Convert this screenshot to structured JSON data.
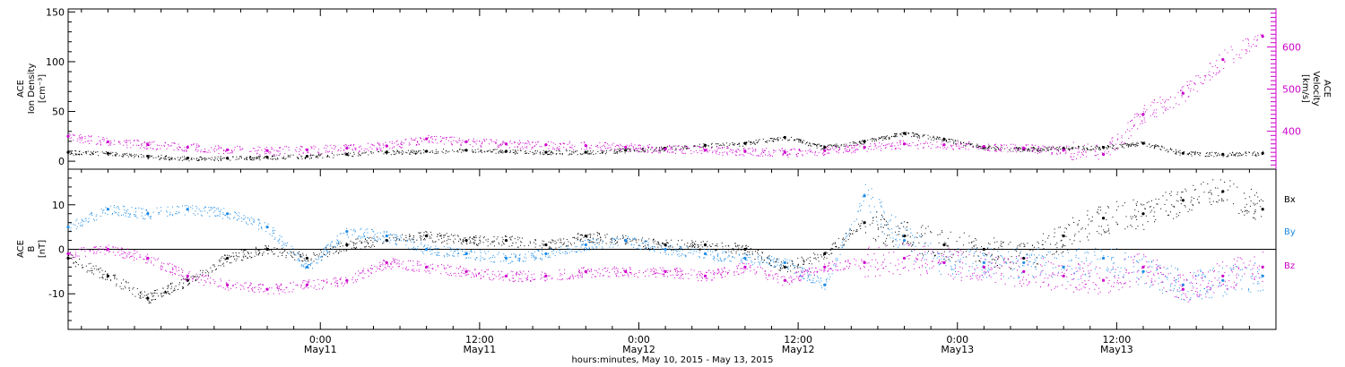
{
  "chart_data": [
    {
      "type": "scatter",
      "panel": "top",
      "ylabel_lines": [
        "ACE",
        "Ion Density",
        "[cm⁻³]"
      ],
      "ylabel_right_lines": [
        "ACE",
        "Velocity",
        "[km/s]"
      ],
      "ylim": [
        -8,
        153
      ],
      "yticks": [
        0,
        50,
        100,
        150
      ],
      "ylim_right": [
        310,
        690
      ],
      "yticks_right": [
        400,
        500,
        600
      ],
      "series": [
        {
          "color": "#000000",
          "axis": "left",
          "x": [
            0,
            3,
            6,
            9,
            12,
            15,
            18,
            21,
            24,
            27,
            30,
            33,
            36,
            39,
            42,
            45,
            48,
            51,
            54,
            57,
            60,
            63,
            66,
            69,
            72,
            75,
            78,
            81,
            84,
            87,
            90
          ],
          "y": [
            9,
            8,
            5,
            3,
            3,
            4,
            5,
            7,
            9,
            10,
            11,
            10,
            9,
            9,
            11,
            13,
            16,
            18,
            24,
            14,
            20,
            28,
            22,
            14,
            12,
            13,
            14,
            18,
            8,
            7,
            8
          ]
        },
        {
          "color": "#cc00cc",
          "axis": "right",
          "x": [
            0,
            3,
            6,
            9,
            12,
            15,
            18,
            21,
            24,
            27,
            30,
            33,
            36,
            39,
            42,
            45,
            48,
            51,
            54,
            57,
            60,
            63,
            66,
            69,
            72,
            75,
            78,
            81,
            84,
            87,
            90
          ],
          "y": [
            388,
            375,
            368,
            362,
            356,
            354,
            356,
            360,
            365,
            382,
            375,
            370,
            368,
            366,
            362,
            358,
            355,
            352,
            350,
            354,
            362,
            370,
            368,
            364,
            360,
            355,
            345,
            440,
            490,
            570,
            625
          ]
        }
      ]
    },
    {
      "type": "scatter",
      "panel": "bottom",
      "ylabel_lines": [
        "ACE",
        "B",
        "[nT]"
      ],
      "ylim": [
        -18,
        18
      ],
      "yticks": [
        -10,
        0,
        10
      ],
      "zero_line": true,
      "series": [
        {
          "name": "Bx",
          "color": "#000000",
          "x": [
            0,
            3,
            6,
            9,
            12,
            15,
            18,
            21,
            24,
            27,
            30,
            33,
            36,
            39,
            42,
            45,
            48,
            51,
            54,
            57,
            60,
            63,
            66,
            69,
            72,
            75,
            78,
            81,
            84,
            87,
            90
          ],
          "y": [
            -2,
            -6,
            -11,
            -7,
            -2,
            0,
            -2,
            1,
            2,
            3,
            2,
            2,
            1,
            3,
            2,
            1,
            1,
            0,
            -4,
            -1,
            6,
            3,
            1,
            0,
            -2,
            3,
            7,
            8,
            11,
            13,
            9
          ]
        },
        {
          "name": "By",
          "color": "#1e8ce6",
          "x": [
            0,
            3,
            6,
            9,
            12,
            15,
            18,
            21,
            24,
            27,
            30,
            33,
            36,
            39,
            42,
            45,
            48,
            51,
            54,
            57,
            60,
            63,
            66,
            69,
            72,
            75,
            78,
            81,
            84,
            87,
            90
          ],
          "y": [
            5,
            9,
            8,
            9,
            8,
            5,
            -4,
            4,
            3,
            0,
            -1,
            -2,
            -1,
            1,
            2,
            0,
            -1,
            -2,
            -3,
            -8,
            12,
            2,
            -3,
            -3,
            -3,
            -4,
            -2,
            -5,
            -8,
            -7,
            -6
          ]
        },
        {
          "name": "Bz",
          "color": "#cc00cc",
          "x": [
            0,
            3,
            6,
            9,
            12,
            15,
            18,
            21,
            24,
            27,
            30,
            33,
            36,
            39,
            42,
            45,
            48,
            51,
            54,
            57,
            60,
            63,
            66,
            69,
            72,
            75,
            78,
            81,
            84,
            87,
            90
          ],
          "y": [
            -1,
            0,
            -2,
            -6,
            -8,
            -9,
            -8,
            -7,
            -3,
            -4,
            -5,
            -6,
            -6,
            -5,
            -5,
            -5,
            -6,
            -4,
            -7,
            -4,
            -3,
            -2,
            -3,
            -4,
            -5,
            -6,
            -7,
            -4,
            -9,
            -6,
            -4
          ]
        }
      ]
    }
  ],
  "x_axis": {
    "range_hours": [
      0,
      91
    ],
    "ticks": [
      {
        "hour": 19,
        "time": "0:00",
        "date": "May11"
      },
      {
        "hour": 31,
        "time": "12:00",
        "date": "May11"
      },
      {
        "hour": 43,
        "time": "0:00",
        "date": "May12"
      },
      {
        "hour": 55,
        "time": "12:00",
        "date": "May12"
      },
      {
        "hour": 67,
        "time": "0:00",
        "date": "May13"
      },
      {
        "hour": 79,
        "time": "12:00",
        "date": "May13"
      }
    ],
    "caption": "hours:minutes, May 10, 2015 - May 13, 2015"
  },
  "legend": [
    "Bx",
    "By",
    "Bz"
  ],
  "colors": {
    "bx": "#000000",
    "by": "#1e8ce6",
    "bz": "#cc00cc",
    "velocity_axis": "#cc00cc"
  }
}
